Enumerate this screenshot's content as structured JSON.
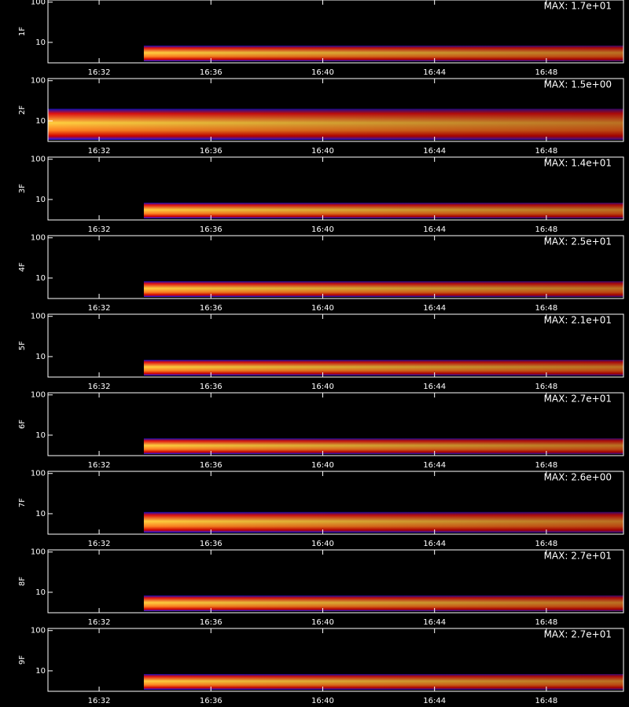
{
  "chart_data": [
    {
      "type": "spectrogram",
      "title": "1F",
      "annotation": "MAX: 1.7e+01",
      "xlim": [
        30.17,
        50.76
      ],
      "xticks": [
        {
          "value": 32,
          "label": "16:32"
        },
        {
          "value": 36,
          "label": "16:36"
        },
        {
          "value": 40,
          "label": "16:40"
        },
        {
          "value": 44,
          "label": "16:44"
        },
        {
          "value": 48,
          "label": "16:48"
        }
      ],
      "ylim": [
        3.1,
        113
      ],
      "yticks": [
        10,
        100
      ],
      "log_y": true,
      "band": {
        "start": 33.6,
        "low": 3.4,
        "high": 8.3
      }
    },
    {
      "type": "spectrogram",
      "title": "2F",
      "annotation": "MAX: 1.5e+00",
      "xlim": [
        30.17,
        50.76
      ],
      "xticks": [
        {
          "value": 32,
          "label": "16:32"
        },
        {
          "value": 36,
          "label": "16:36"
        },
        {
          "value": 40,
          "label": "16:40"
        },
        {
          "value": 44,
          "label": "16:44"
        },
        {
          "value": 48,
          "label": "16:48"
        }
      ],
      "ylim": [
        3.1,
        113
      ],
      "yticks": [
        10,
        100
      ],
      "log_y": true,
      "band": {
        "start": 30.17,
        "low": 3.4,
        "high": 20
      }
    },
    {
      "type": "spectrogram",
      "title": "3F",
      "annotation": "MAX: 1.4e+01",
      "xlim": [
        30.17,
        50.76
      ],
      "xticks": [
        {
          "value": 32,
          "label": "16:32"
        },
        {
          "value": 36,
          "label": "16:36"
        },
        {
          "value": 40,
          "label": "16:40"
        },
        {
          "value": 44,
          "label": "16:44"
        },
        {
          "value": 48,
          "label": "16:48"
        }
      ],
      "ylim": [
        3.1,
        113
      ],
      "yticks": [
        10,
        100
      ],
      "log_y": true,
      "band": {
        "start": 33.6,
        "low": 3.4,
        "high": 8.3
      }
    },
    {
      "type": "spectrogram",
      "title": "4F",
      "annotation": "MAX: 2.5e+01",
      "xlim": [
        30.17,
        50.76
      ],
      "xticks": [
        {
          "value": 32,
          "label": "16:32"
        },
        {
          "value": 36,
          "label": "16:36"
        },
        {
          "value": 40,
          "label": "16:40"
        },
        {
          "value": 44,
          "label": "16:44"
        },
        {
          "value": 48,
          "label": "16:48"
        }
      ],
      "ylim": [
        3.1,
        113
      ],
      "yticks": [
        10,
        100
      ],
      "log_y": true,
      "band": {
        "start": 33.6,
        "low": 3.4,
        "high": 8.3
      }
    },
    {
      "type": "spectrogram",
      "title": "5F",
      "annotation": "MAX: 2.1e+01",
      "xlim": [
        30.17,
        50.76
      ],
      "xticks": [
        {
          "value": 32,
          "label": "16:32"
        },
        {
          "value": 36,
          "label": "16:36"
        },
        {
          "value": 40,
          "label": "16:40"
        },
        {
          "value": 44,
          "label": "16:44"
        },
        {
          "value": 48,
          "label": "16:48"
        }
      ],
      "ylim": [
        3.1,
        113
      ],
      "yticks": [
        10,
        100
      ],
      "log_y": true,
      "band": {
        "start": 33.6,
        "low": 3.4,
        "high": 8.3
      }
    },
    {
      "type": "spectrogram",
      "title": "6F",
      "annotation": "MAX: 2.7e+01",
      "xlim": [
        30.17,
        50.76
      ],
      "xticks": [
        {
          "value": 32,
          "label": "16:32"
        },
        {
          "value": 36,
          "label": "16:36"
        },
        {
          "value": 40,
          "label": "16:40"
        },
        {
          "value": 44,
          "label": "16:44"
        },
        {
          "value": 48,
          "label": "16:48"
        }
      ],
      "ylim": [
        3.1,
        113
      ],
      "yticks": [
        10,
        100
      ],
      "log_y": true,
      "band": {
        "start": 33.6,
        "low": 3.4,
        "high": 8.3
      }
    },
    {
      "type": "spectrogram",
      "title": "7F",
      "annotation": "MAX: 2.6e+00",
      "xlim": [
        30.17,
        50.76
      ],
      "xticks": [
        {
          "value": 32,
          "label": "16:32"
        },
        {
          "value": 36,
          "label": "16:36"
        },
        {
          "value": 40,
          "label": "16:40"
        },
        {
          "value": 44,
          "label": "16:44"
        },
        {
          "value": 48,
          "label": "16:48"
        }
      ],
      "ylim": [
        3.1,
        113
      ],
      "yticks": [
        10,
        100
      ],
      "log_y": true,
      "band": {
        "start": 33.6,
        "low": 3.4,
        "high": 11
      }
    },
    {
      "type": "spectrogram",
      "title": "8F",
      "annotation": "MAX: 2.7e+01",
      "xlim": [
        30.17,
        50.76
      ],
      "xticks": [
        {
          "value": 32,
          "label": "16:32"
        },
        {
          "value": 36,
          "label": "16:36"
        },
        {
          "value": 40,
          "label": "16:40"
        },
        {
          "value": 44,
          "label": "16:44"
        },
        {
          "value": 48,
          "label": "16:48"
        }
      ],
      "ylim": [
        3.1,
        113
      ],
      "yticks": [
        10,
        100
      ],
      "log_y": true,
      "band": {
        "start": 33.6,
        "low": 3.4,
        "high": 8.3
      }
    },
    {
      "type": "spectrogram",
      "title": "9F",
      "annotation": "MAX: 2.7e+01",
      "xlim": [
        30.17,
        50.76
      ],
      "xticks": [
        {
          "value": 32,
          "label": "16:32"
        },
        {
          "value": 36,
          "label": "16:36"
        },
        {
          "value": 40,
          "label": "16:40"
        },
        {
          "value": 44,
          "label": "16:44"
        },
        {
          "value": 48,
          "label": "16:48"
        }
      ],
      "ylim": [
        3.1,
        113
      ],
      "yticks": [
        10,
        100
      ],
      "log_y": true,
      "band": {
        "start": 33.6,
        "low": 3.4,
        "high": 8.3
      }
    }
  ]
}
